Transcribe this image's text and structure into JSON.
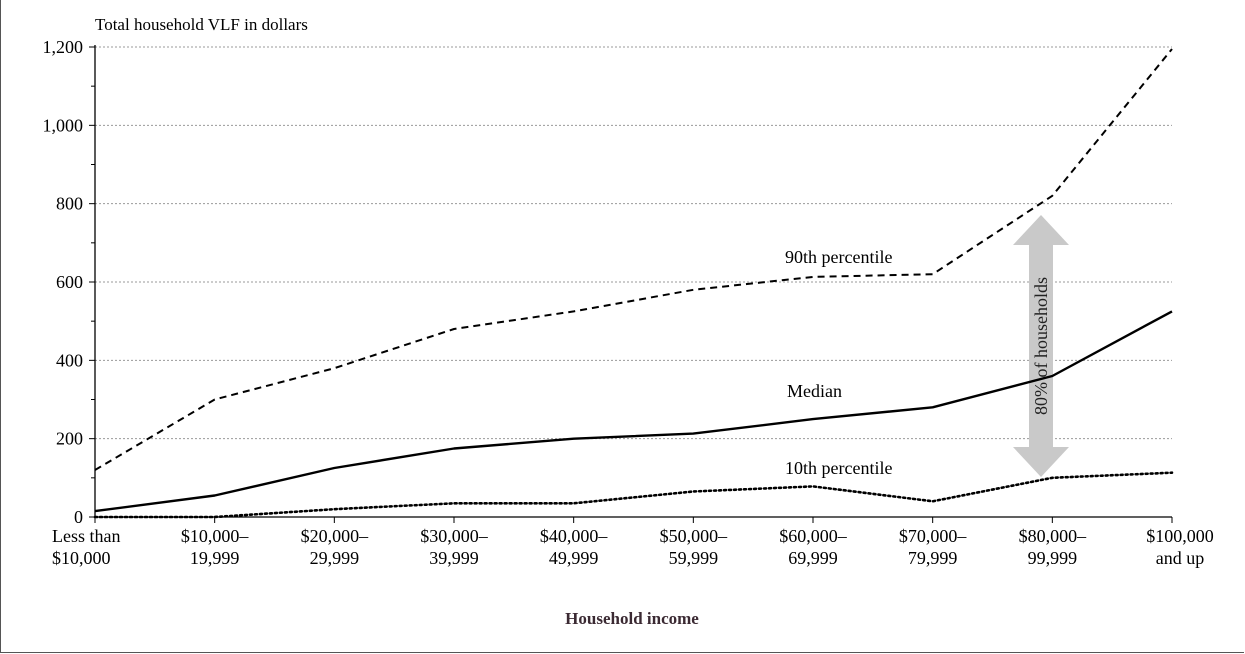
{
  "chart_data": {
    "type": "line",
    "title": "Total household VLF in dollars",
    "xlabel": "Household income",
    "ylabel": "",
    "ylim": [
      0,
      1200
    ],
    "yticks": [
      0,
      200,
      400,
      600,
      800,
      1000,
      1200
    ],
    "ytick_labels": [
      "0",
      "200",
      "400",
      "600",
      "800",
      "1,000",
      "1,200"
    ],
    "grid": true,
    "categories": [
      [
        "Less than",
        "$10,000"
      ],
      [
        "$10,000–",
        "19,999"
      ],
      [
        "$20,000–",
        "29,999"
      ],
      [
        "$30,000–",
        "39,999"
      ],
      [
        "$40,000–",
        "49,999"
      ],
      [
        "$50,000–",
        "59,999"
      ],
      [
        "$60,000–",
        "69,999"
      ],
      [
        "$70,000–",
        "79,999"
      ],
      [
        "$80,000–",
        "99,999"
      ],
      [
        "$100,000",
        "and up"
      ]
    ],
    "series": [
      {
        "name": "90th percentile",
        "style": "dashed",
        "values": [
          120,
          300,
          380,
          480,
          525,
          580,
          613,
          620,
          820,
          1195
        ]
      },
      {
        "name": "Median",
        "style": "solid",
        "values": [
          15,
          55,
          125,
          175,
          200,
          213,
          250,
          280,
          360,
          525
        ]
      },
      {
        "name": "10th percentile",
        "style": "dotted",
        "values": [
          0,
          0,
          20,
          35,
          35,
          65,
          78,
          40,
          100,
          113
        ]
      }
    ],
    "annotation": "80% of households",
    "colors": {
      "line": "#000000",
      "grid": "#9a9a9a",
      "arrow": "#c9c9c9"
    }
  }
}
